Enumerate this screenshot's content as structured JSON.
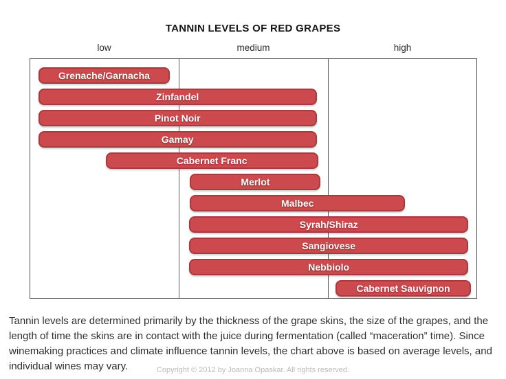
{
  "title": "TANNIN LEVELS OF RED GRAPES",
  "axis_labels": [
    "low",
    "medium",
    "high"
  ],
  "colors": {
    "bar_fill": "#cc4a4e",
    "bar_border": "#a83a3e",
    "bar_text": "#ffffff",
    "frame_border": "#4f4f4f",
    "copyright_text": "#bdb9b9"
  },
  "chart_data": {
    "type": "bar",
    "orientation": "horizontal-range",
    "title": "TANNIN LEVELS OF RED GRAPES",
    "x_axis": {
      "labels": [
        "low",
        "medium",
        "high"
      ],
      "scale_range": [
        0,
        3
      ],
      "grid": "column-dividers"
    },
    "bars": [
      {
        "label": "Grenache/Garnacha",
        "tannin_range": [
          0.06,
          0.94
        ],
        "start_pct": 1.8,
        "end_pct": 31.3
      },
      {
        "label": "Zinfandel",
        "tannin_range": [
          0.06,
          1.93
        ],
        "start_pct": 1.8,
        "end_pct": 64.2
      },
      {
        "label": "Pinot Noir",
        "tannin_range": [
          0.06,
          1.93
        ],
        "start_pct": 1.8,
        "end_pct": 64.2
      },
      {
        "label": "Gamay",
        "tannin_range": [
          0.06,
          1.93
        ],
        "start_pct": 1.8,
        "end_pct": 64.2
      },
      {
        "label": "Cabernet Franc",
        "tannin_range": [
          0.51,
          1.94
        ],
        "start_pct": 16.9,
        "end_pct": 64.5
      },
      {
        "label": "Merlot",
        "tannin_range": [
          1.07,
          1.95
        ],
        "start_pct": 35.8,
        "end_pct": 65.1
      },
      {
        "label": "Malbec",
        "tannin_range": [
          1.07,
          2.52
        ],
        "start_pct": 35.8,
        "end_pct": 84.0
      },
      {
        "label": "Syrah/Shiraz",
        "tannin_range": [
          1.07,
          2.94
        ],
        "start_pct": 35.6,
        "end_pct": 98.2
      },
      {
        "label": "Sangiovese",
        "tannin_range": [
          1.07,
          2.94
        ],
        "start_pct": 35.6,
        "end_pct": 98.2
      },
      {
        "label": "Nebbiolo",
        "tannin_range": [
          1.07,
          2.94
        ],
        "start_pct": 35.6,
        "end_pct": 98.2
      },
      {
        "label": "Cabernet Sauvignon",
        "tannin_range": [
          2.05,
          2.96
        ],
        "start_pct": 68.4,
        "end_pct": 98.8
      }
    ]
  },
  "description": "Tannin levels are determined primarily by the thickness of the grape skins, the size of the grapes, and the length of time the skins are in contact with the juice during fermentation (called “maceration” time).  Since winemaking practices and climate influence tannin levels, the chart above is based on average levels, and individual wines may vary.",
  "copyright": "Copyright © 2012 by Joanna Opaskar. All rights reserved."
}
